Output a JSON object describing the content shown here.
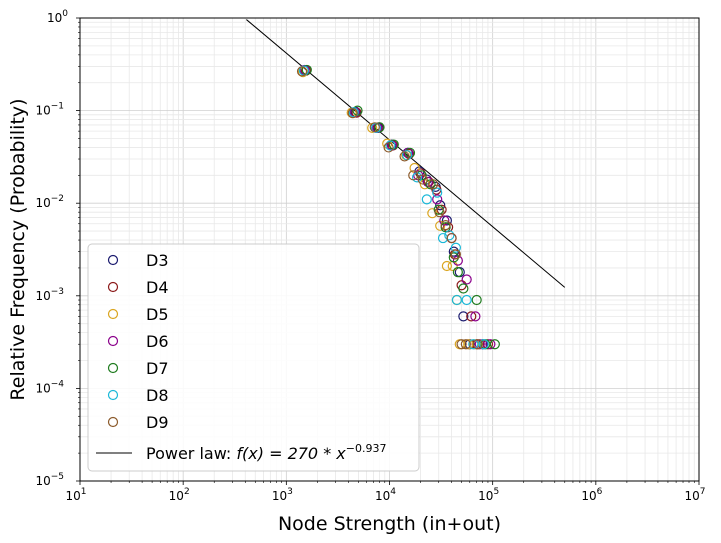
{
  "chart_data": {
    "type": "scatter",
    "xlabel": "Node Strength (in+out)",
    "ylabel": "Relative Frequency (Probability)",
    "xscale": "log",
    "yscale": "log",
    "xlim": [
      10,
      10000000
    ],
    "ylim": [
      1e-05,
      1
    ],
    "grid": true,
    "legend_position": "lower-left",
    "x_ticks": [
      {
        "value": 10,
        "base": "10",
        "exp": "1"
      },
      {
        "value": 100,
        "base": "10",
        "exp": "2"
      },
      {
        "value": 1000,
        "base": "10",
        "exp": "3"
      },
      {
        "value": 10000,
        "base": "10",
        "exp": "4"
      },
      {
        "value": 100000,
        "base": "10",
        "exp": "5"
      },
      {
        "value": 1000000,
        "base": "10",
        "exp": "6"
      },
      {
        "value": 10000000,
        "base": "10",
        "exp": "7"
      }
    ],
    "y_ticks": [
      {
        "value": 1e-05,
        "base": "10",
        "exp": "−5"
      },
      {
        "value": 0.0001,
        "base": "10",
        "exp": "−4"
      },
      {
        "value": 0.001,
        "base": "10",
        "exp": "−3"
      },
      {
        "value": 0.01,
        "base": "10",
        "exp": "−2"
      },
      {
        "value": 0.1,
        "base": "10",
        "exp": "−1"
      },
      {
        "value": 1,
        "base": "10",
        "exp": "0"
      }
    ],
    "series": [
      {
        "name": "D3",
        "color": "#1a1a6e",
        "points": [
          [
            1500,
            0.27
          ],
          [
            4700,
            0.097
          ],
          [
            7800,
            0.065
          ],
          [
            10500,
            0.043
          ],
          [
            15000,
            0.035
          ],
          [
            19500,
            0.022
          ],
          [
            23000,
            0.018
          ],
          [
            28000,
            0.015
          ],
          [
            31000,
            0.0095
          ],
          [
            36000,
            0.0065
          ],
          [
            42000,
            0.003
          ],
          [
            48000,
            0.0018
          ],
          [
            52000,
            0.0006
          ],
          [
            60000,
            0.0003
          ],
          [
            80000,
            0.0003
          ]
        ]
      },
      {
        "name": "D4",
        "color": "#8b1a1a",
        "points": [
          [
            1550,
            0.27
          ],
          [
            4800,
            0.095
          ],
          [
            7900,
            0.066
          ],
          [
            10800,
            0.042
          ],
          [
            15500,
            0.034
          ],
          [
            20000,
            0.021
          ],
          [
            24000,
            0.017
          ],
          [
            28500,
            0.014
          ],
          [
            32000,
            0.0085
          ],
          [
            37000,
            0.0055
          ],
          [
            43000,
            0.0028
          ],
          [
            50000,
            0.0013
          ],
          [
            62000,
            0.0006
          ],
          [
            70000,
            0.0003
          ],
          [
            90000,
            0.0003
          ]
        ]
      },
      {
        "name": "D5",
        "color": "#daa520",
        "points": [
          [
            1450,
            0.26
          ],
          [
            4300,
            0.095
          ],
          [
            6800,
            0.065
          ],
          [
            9500,
            0.044
          ],
          [
            14500,
            0.033
          ],
          [
            17500,
            0.024
          ],
          [
            22000,
            0.016
          ],
          [
            26000,
            0.0078
          ],
          [
            31000,
            0.0057
          ],
          [
            36000,
            0.0021
          ],
          [
            41000,
            0.0021
          ],
          [
            45000,
            0.0009
          ],
          [
            48000,
            0.0003
          ],
          [
            58000,
            0.0003
          ],
          [
            66000,
            0.0003
          ]
        ]
      },
      {
        "name": "D6",
        "color": "#8b008b",
        "points": [
          [
            1500,
            0.275
          ],
          [
            4600,
            0.096
          ],
          [
            7600,
            0.065
          ],
          [
            10600,
            0.042
          ],
          [
            15200,
            0.035
          ],
          [
            19000,
            0.02
          ],
          [
            23500,
            0.017
          ],
          [
            29000,
            0.011
          ],
          [
            34000,
            0.0065
          ],
          [
            40000,
            0.0042
          ],
          [
            46000,
            0.0024
          ],
          [
            56000,
            0.0015
          ],
          [
            68000,
            0.0006
          ],
          [
            75000,
            0.0003
          ],
          [
            95000,
            0.0003
          ]
        ]
      },
      {
        "name": "D7",
        "color": "#1e7b1e",
        "points": [
          [
            1580,
            0.275
          ],
          [
            4900,
            0.1
          ],
          [
            8000,
            0.066
          ],
          [
            11000,
            0.043
          ],
          [
            15800,
            0.035
          ],
          [
            20500,
            0.02
          ],
          [
            25000,
            0.016
          ],
          [
            30000,
            0.0085
          ],
          [
            35000,
            0.0055
          ],
          [
            42000,
            0.0026
          ],
          [
            46000,
            0.0018
          ],
          [
            52000,
            0.0012
          ],
          [
            70000,
            0.0009
          ],
          [
            85000,
            0.0003
          ],
          [
            105000,
            0.0003
          ]
        ]
      },
      {
        "name": "D8",
        "color": "#1ab8d8",
        "points": [
          [
            1480,
            0.27
          ],
          [
            4500,
            0.096
          ],
          [
            7400,
            0.065
          ],
          [
            10200,
            0.042
          ],
          [
            14800,
            0.033
          ],
          [
            18500,
            0.019
          ],
          [
            23000,
            0.011
          ],
          [
            29000,
            0.013
          ],
          [
            33000,
            0.0042
          ],
          [
            38000,
            0.0045
          ],
          [
            44000,
            0.0033
          ],
          [
            45000,
            0.0009
          ],
          [
            56000,
            0.0009
          ],
          [
            65000,
            0.0003
          ],
          [
            82000,
            0.0003
          ]
        ]
      },
      {
        "name": "D9",
        "color": "#8b5a2b",
        "points": [
          [
            1420,
            0.265
          ],
          [
            4400,
            0.094
          ],
          [
            7200,
            0.066
          ],
          [
            9800,
            0.04
          ],
          [
            14000,
            0.032
          ],
          [
            17000,
            0.02
          ],
          [
            21000,
            0.018
          ],
          [
            26500,
            0.016
          ],
          [
            30500,
            0.008
          ],
          [
            35000,
            0.0058
          ],
          [
            40000,
            0.0042
          ],
          [
            44000,
            0.0028
          ],
          [
            50000,
            0.0003
          ],
          [
            55000,
            0.0003
          ],
          [
            72000,
            0.0003
          ]
        ]
      }
    ],
    "power_law": {
      "label_prefix": "Power law: ",
      "label_formula": "f(x) = 270 * x",
      "label_exponent": "−0.937",
      "coefficient": 270,
      "exponent": -0.937,
      "x_range": [
        410,
        500000
      ],
      "color": "#000000"
    }
  }
}
